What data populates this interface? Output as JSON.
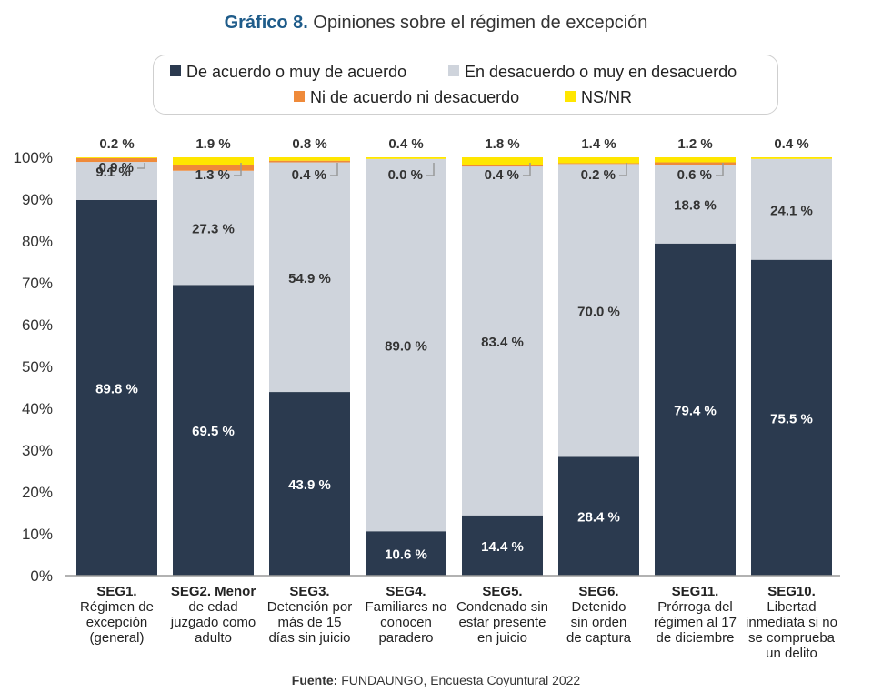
{
  "title": {
    "lead": "Gráfico 8.",
    "rest": "Opiniones sobre el régimen de excepción"
  },
  "source": {
    "label": "Fuente:",
    "text": "FUNDAUNGO, Encuesta Coyuntural 2022"
  },
  "colors": {
    "acuerdo": "#2b3a4f",
    "desacuerdo": "#cfd4dc",
    "ni": "#ef8a3a",
    "nsnr": "#ffe600",
    "axis": "#999999",
    "title_accent": "#1f5c8a"
  },
  "chart_data": {
    "type": "bar",
    "stacked": true,
    "title": "Gráfico 8. Opiniones sobre el régimen de excepción",
    "legend": [
      "De acuerdo o muy de acuerdo",
      "En desacuerdo o muy en desacuerdo",
      "Ni de acuerdo ni desacuerdo",
      "NS/NR"
    ],
    "legend_position": "top",
    "ylim": [
      0,
      100
    ],
    "y_ticks": [
      "0%",
      "10%",
      "20%",
      "30%",
      "40%",
      "50%",
      "60%",
      "70%",
      "80%",
      "90%",
      "100%"
    ],
    "categories": [
      {
        "code": "SEG1.",
        "desc": [
          "Régimen de",
          "excepción",
          "(general)"
        ]
      },
      {
        "code": "SEG2. Menor",
        "desc": [
          "de edad",
          "juzgado como",
          "adulto"
        ]
      },
      {
        "code": "SEG3.",
        "desc": [
          "Detención por",
          "más de 15",
          "días sin juicio"
        ]
      },
      {
        "code": "SEG4.",
        "desc": [
          "Familiares no",
          "conocen",
          "paradero"
        ]
      },
      {
        "code": "SEG5.",
        "desc": [
          "Condenado sin",
          "estar presente",
          "en juicio"
        ]
      },
      {
        "code": "SEG6.",
        "desc": [
          "Detenido",
          "sin orden",
          "de captura"
        ]
      },
      {
        "code": "SEG11.",
        "desc": [
          "Prórroga del",
          "régimen al 17",
          "de diciembre"
        ]
      },
      {
        "code": "SEG10.",
        "desc": [
          "Libertad",
          "inmediata si no",
          "se comprueba",
          "un delito"
        ]
      }
    ],
    "series": [
      {
        "name": "De acuerdo o muy de acuerdo",
        "values": [
          89.8,
          69.5,
          43.9,
          10.6,
          14.4,
          28.4,
          79.4,
          75.5
        ],
        "labels": [
          "89.8 %",
          "69.5 %",
          "43.9 %",
          "10.6 %",
          "14.4 %",
          "28.4 %",
          "79.4 %",
          "75.5 %"
        ]
      },
      {
        "name": "En desacuerdo o muy en desacuerdo",
        "values": [
          9.1,
          27.3,
          54.9,
          89.0,
          83.4,
          70.0,
          18.8,
          24.1
        ],
        "labels": [
          "9.1 %",
          "27.3 %",
          "54.9 %",
          "89.0 %",
          "83.4 %",
          "70.0 %",
          "18.8 %",
          "24.1 %"
        ]
      },
      {
        "name": "Ni de acuerdo ni desacuerdo",
        "values": [
          0.9,
          1.3,
          0.4,
          0.0,
          0.4,
          0.2,
          0.6,
          null
        ],
        "labels": [
          "0.9 %",
          "1.3 %",
          "0.4 %",
          "0.0 %",
          "0.4 %",
          "0.2 %",
          "0.6 %",
          null
        ]
      },
      {
        "name": "NS/NR",
        "values": [
          0.2,
          1.9,
          0.8,
          0.4,
          1.8,
          1.4,
          1.2,
          0.4
        ],
        "labels": [
          "0.2 %",
          "1.9 %",
          "0.8 %",
          "0.4 %",
          "1.8 %",
          "1.4 %",
          "1.2 %",
          "0.4 %"
        ]
      }
    ]
  }
}
